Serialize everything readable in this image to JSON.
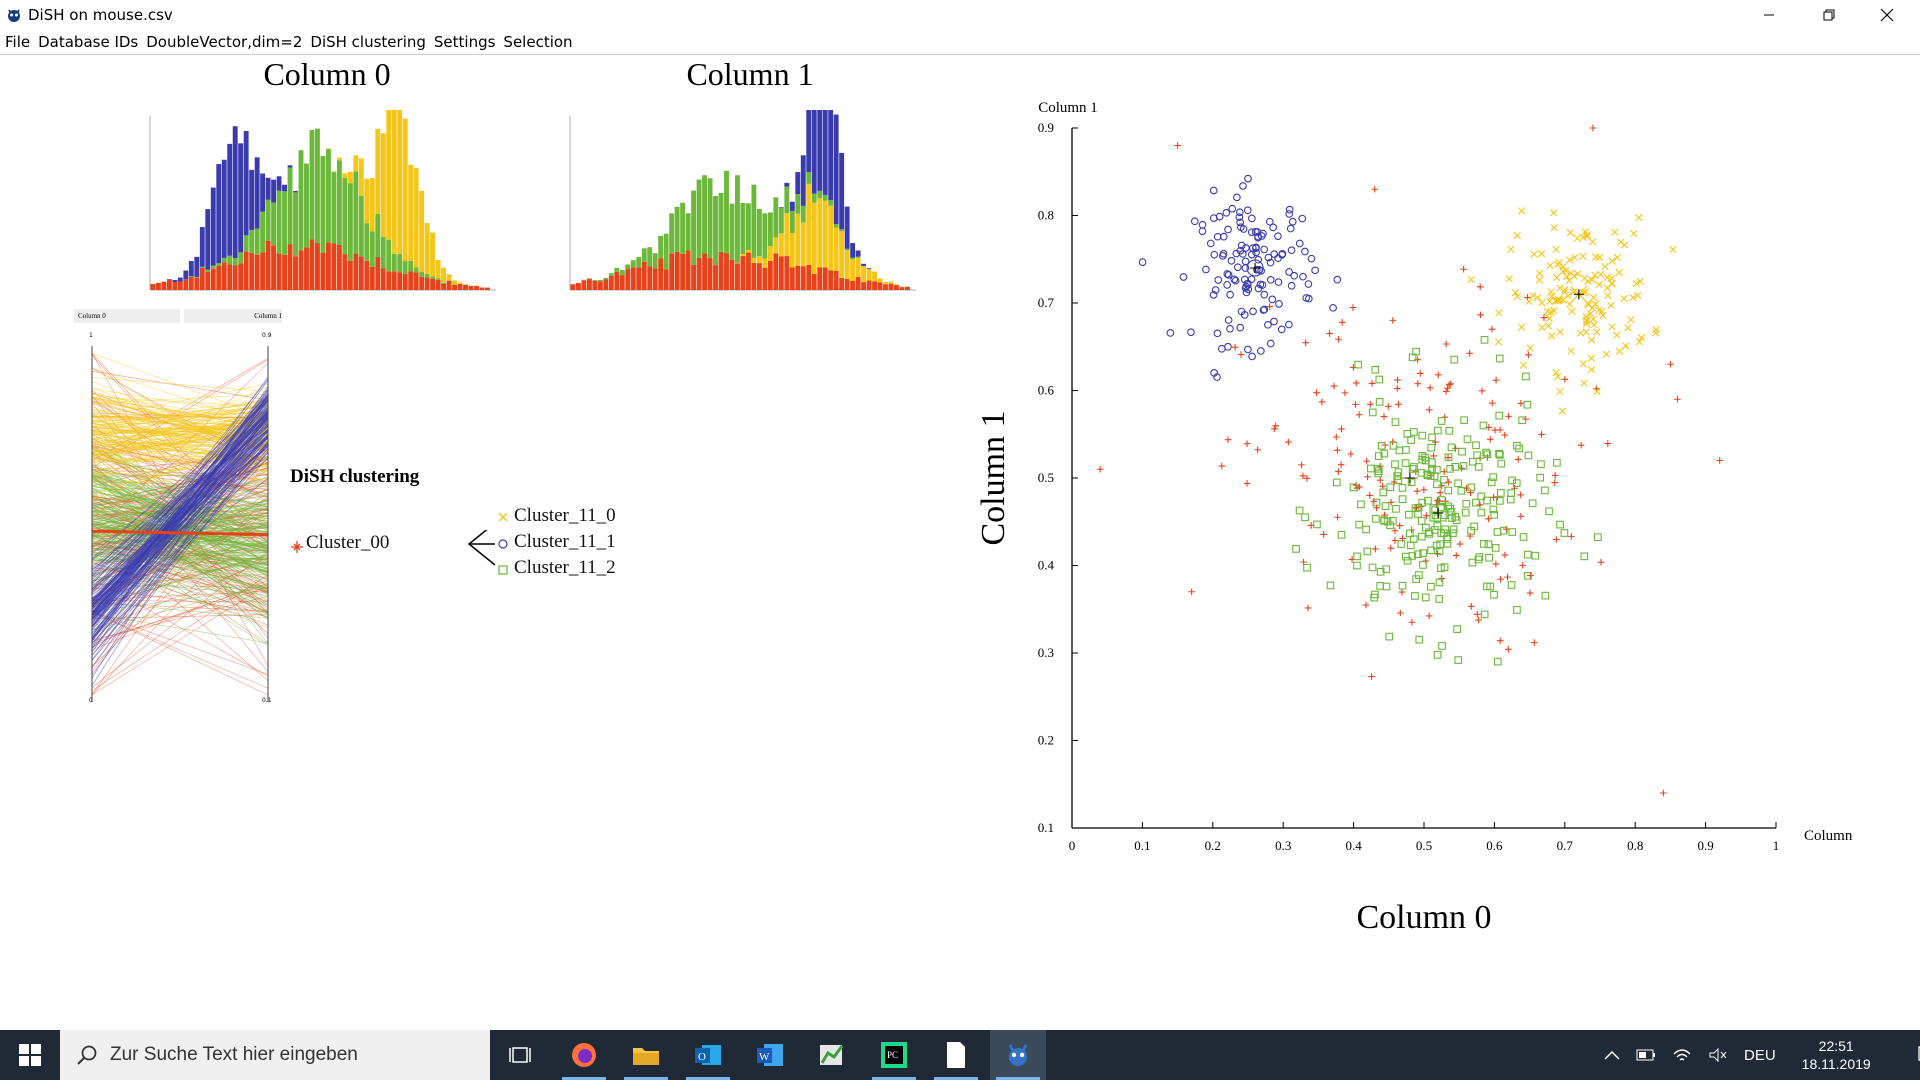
{
  "window": {
    "title": "DiSH on mouse.csv"
  },
  "menu": [
    "File",
    "Database IDs",
    "DoubleVector,dim=2",
    "DiSH clustering",
    "Settings",
    "Selection"
  ],
  "colors": {
    "red": "#e8421b",
    "blue": "#3b3bb0",
    "green": "#6bb83a",
    "yellow": "#f5c518"
  },
  "histograms": [
    {
      "title": "Column 0"
    },
    {
      "title": "Column 1"
    }
  ],
  "parallel": {
    "axis_labels": [
      "Column 0",
      "Column 1"
    ],
    "left_top": "1",
    "left_bottom": "0",
    "right_top": "0.9",
    "right_bottom": "0.1"
  },
  "legend": {
    "title": "DiSH clustering",
    "root": "Cluster_00",
    "children": [
      "Cluster_11_0",
      "Cluster_11_1",
      "Cluster_11_2"
    ]
  },
  "chart_data": {
    "type": "scatter",
    "xlabel": "Column 0",
    "ylabel": "Column 1",
    "xlim": [
      0,
      1
    ],
    "ylim": [
      0.1,
      0.9
    ],
    "x_ticks": [
      "0",
      "0.1",
      "0.2",
      "0.3",
      "0.4",
      "0.5",
      "0.6",
      "0.7",
      "0.8",
      "0.9",
      "1"
    ],
    "y_ticks": [
      "0.1",
      "0.2",
      "0.3",
      "0.4",
      "0.5",
      "0.6",
      "0.7",
      "0.8",
      "0.9"
    ],
    "x_axis_end_label": "Column",
    "y_axis_top_label": "Column 1",
    "series": [
      {
        "name": "Cluster_00",
        "marker": "plus",
        "color": "#e8421b",
        "center": [
          0.48,
          0.5
        ],
        "spread": [
          0.14,
          0.12
        ],
        "count": 170,
        "outliers": [
          [
            0.04,
            0.51
          ],
          [
            0.15,
            0.88
          ],
          [
            0.74,
            0.9
          ],
          [
            0.85,
            0.63
          ],
          [
            0.86,
            0.59
          ],
          [
            0.92,
            0.52
          ],
          [
            0.84,
            0.14
          ],
          [
            0.17,
            0.37
          ],
          [
            0.43,
            0.83
          ]
        ]
      },
      {
        "name": "Cluster_11_0",
        "marker": "x",
        "color": "#f5c518",
        "center": [
          0.72,
          0.71
        ],
        "spread": [
          0.06,
          0.05
        ],
        "count": 140
      },
      {
        "name": "Cluster_11_1",
        "marker": "circle",
        "color": "#3b3bb0",
        "center": [
          0.26,
          0.74
        ],
        "spread": [
          0.05,
          0.05
        ],
        "count": 130
      },
      {
        "name": "Cluster_11_2",
        "marker": "square",
        "color": "#6bb83a",
        "center": [
          0.52,
          0.46
        ],
        "spread": [
          0.09,
          0.08
        ],
        "count": 230
      }
    ]
  },
  "taskbar": {
    "search_placeholder": "Zur Suche Text hier eingeben",
    "language": "DEU",
    "time": "22:51",
    "date": "18.11.2019"
  }
}
